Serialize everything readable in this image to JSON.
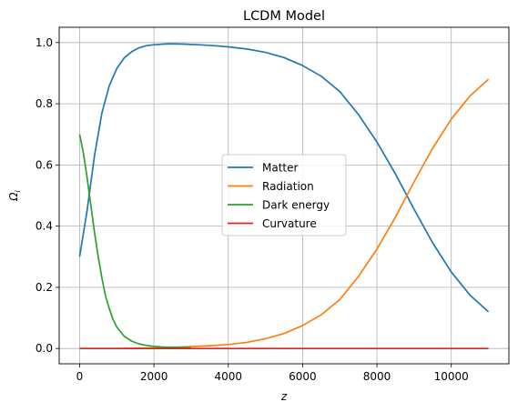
{
  "chart_data": {
    "type": "line",
    "title": "LCDM Model",
    "xlabel": "z",
    "ylabel": "Ω_i",
    "ylabel_main": "Ω",
    "ylabel_sub": "i",
    "xlim": [
      -550,
      11550
    ],
    "ylim": [
      -0.05,
      1.05
    ],
    "xticks": [
      0,
      2000,
      4000,
      6000,
      8000,
      10000
    ],
    "xtick_labels": [
      "0",
      "2000",
      "4000",
      "6000",
      "8000",
      "10000"
    ],
    "yticks": [
      0.0,
      0.2,
      0.4,
      0.6,
      0.8,
      1.0
    ],
    "ytick_labels": [
      "0.0",
      "0.2",
      "0.4",
      "0.6",
      "0.8",
      "1.0"
    ],
    "grid": true,
    "legend_position": "center",
    "series": [
      {
        "name": "Matter",
        "color": "#1f77b4",
        "x": [
          0,
          200,
          400,
          600,
          800,
          1000,
          1200,
          1400,
          1600,
          1800,
          2000,
          2400,
          2800,
          3200,
          3600,
          4000,
          4500,
          5000,
          5500,
          6000,
          6500,
          7000,
          7500,
          8000,
          8500,
          9000,
          9500,
          10000,
          10500,
          11000
        ],
        "y": [
          0.3,
          0.45,
          0.63,
          0.77,
          0.86,
          0.915,
          0.95,
          0.97,
          0.983,
          0.99,
          0.993,
          0.996,
          0.995,
          0.993,
          0.99,
          0.986,
          0.979,
          0.968,
          0.951,
          0.925,
          0.89,
          0.84,
          0.765,
          0.675,
          0.57,
          0.455,
          0.345,
          0.25,
          0.175,
          0.12
        ]
      },
      {
        "name": "Radiation",
        "color": "#ff7f0e",
        "x": [
          0,
          1000,
          2000,
          2500,
          3000,
          3500,
          4000,
          4500,
          5000,
          5500,
          6000,
          6500,
          7000,
          7500,
          8000,
          8500,
          9000,
          9500,
          10000,
          10500,
          11000
        ],
        "y": [
          0.0,
          0.0,
          0.002,
          0.004,
          0.006,
          0.009,
          0.013,
          0.02,
          0.032,
          0.049,
          0.075,
          0.11,
          0.16,
          0.235,
          0.325,
          0.43,
          0.545,
          0.655,
          0.75,
          0.825,
          0.88
        ]
      },
      {
        "name": "Dark energy",
        "color": "#2ca02c",
        "x": [
          0,
          100,
          200,
          300,
          400,
          500,
          600,
          700,
          800,
          900,
          1000,
          1200,
          1400,
          1600,
          1800,
          2000,
          2200,
          2400,
          2600,
          3000
        ],
        "y": [
          0.7,
          0.64,
          0.56,
          0.47,
          0.38,
          0.3,
          0.23,
          0.17,
          0.13,
          0.095,
          0.07,
          0.04,
          0.024,
          0.015,
          0.01,
          0.007,
          0.005,
          0.004,
          0.004,
          0.003
        ]
      },
      {
        "name": "Curvature",
        "color": "#d62728",
        "x": [
          0,
          11000
        ],
        "y": [
          0.0,
          0.0
        ]
      }
    ]
  }
}
